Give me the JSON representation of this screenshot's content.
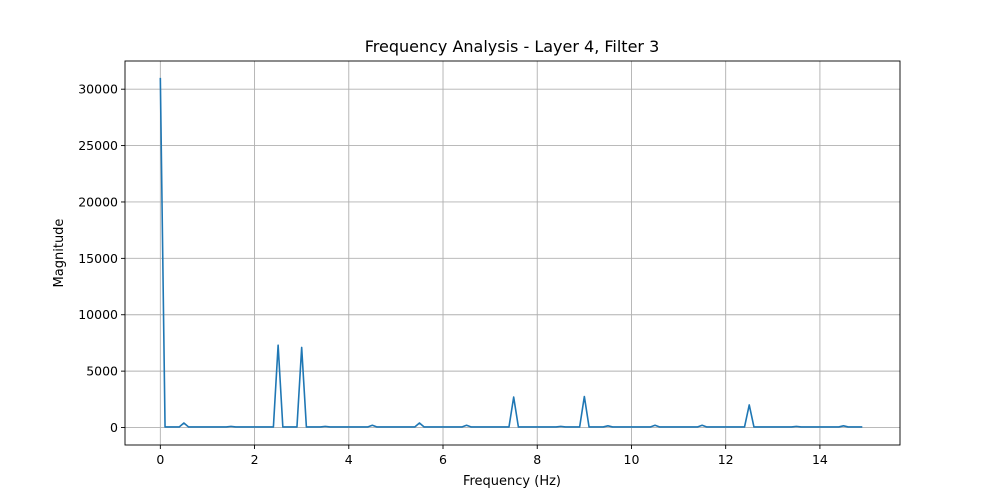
{
  "chart_data": {
    "type": "line",
    "title": "Frequency Analysis - Layer 4, Filter 3",
    "xlabel": "Frequency (Hz)",
    "ylabel": "Magnitude",
    "xlim": [
      -0.75,
      15.7
    ],
    "ylim": [
      -1550,
      32500
    ],
    "xticks": [
      0,
      2,
      4,
      6,
      8,
      10,
      12,
      14
    ],
    "yticks": [
      0,
      5000,
      10000,
      15000,
      20000,
      25000,
      30000
    ],
    "grid": true,
    "series": [
      {
        "color": "#1f77b4",
        "x": [
          0,
          0.1,
          0.4,
          0.5,
          0.6,
          1.4,
          1.5,
          1.6,
          2.4,
          2.5,
          2.6,
          2.9,
          3.0,
          3.1,
          3.4,
          3.5,
          3.6,
          4.4,
          4.5,
          4.6,
          5.4,
          5.5,
          5.6,
          6.4,
          6.5,
          6.6,
          7.4,
          7.5,
          7.6,
          8.4,
          8.5,
          8.6,
          8.9,
          9.0,
          9.1,
          9.4,
          9.5,
          9.6,
          10.4,
          10.5,
          10.6,
          11.4,
          11.5,
          11.6,
          12.4,
          12.5,
          12.6,
          13.4,
          13.5,
          13.6,
          14.4,
          14.5,
          14.6,
          14.9
        ],
        "y": [
          31000,
          50,
          50,
          400,
          50,
          50,
          100,
          50,
          50,
          7300,
          50,
          50,
          7100,
          50,
          50,
          100,
          50,
          50,
          200,
          50,
          50,
          400,
          50,
          50,
          200,
          50,
          50,
          2700,
          50,
          50,
          100,
          50,
          50,
          2750,
          50,
          50,
          150,
          50,
          50,
          200,
          50,
          50,
          200,
          50,
          50,
          2000,
          50,
          50,
          100,
          50,
          50,
          150,
          50,
          50
        ]
      }
    ]
  }
}
